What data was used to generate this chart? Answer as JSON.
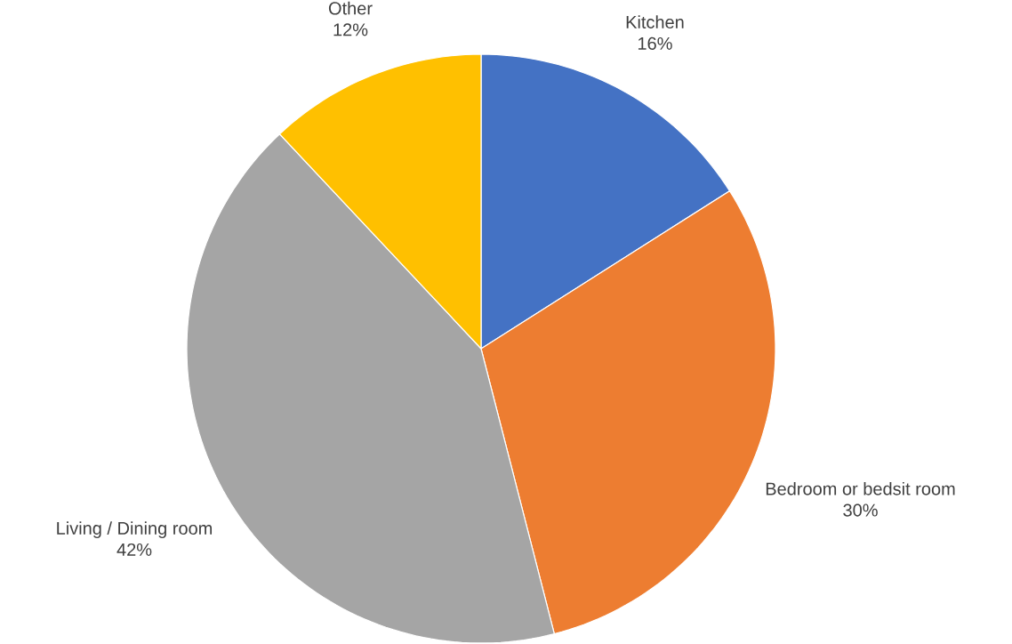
{
  "chart_data": {
    "type": "pie",
    "categories": [
      "Kitchen",
      "Bedroom or bedsit room",
      "Living / Dining room",
      "Other"
    ],
    "values": [
      16,
      30,
      42,
      12
    ],
    "value_labels": [
      "16%",
      "30%",
      "42%",
      "12%"
    ],
    "colors": [
      "#4472c4",
      "#ed7d31",
      "#a5a5a5",
      "#ffc000"
    ]
  }
}
